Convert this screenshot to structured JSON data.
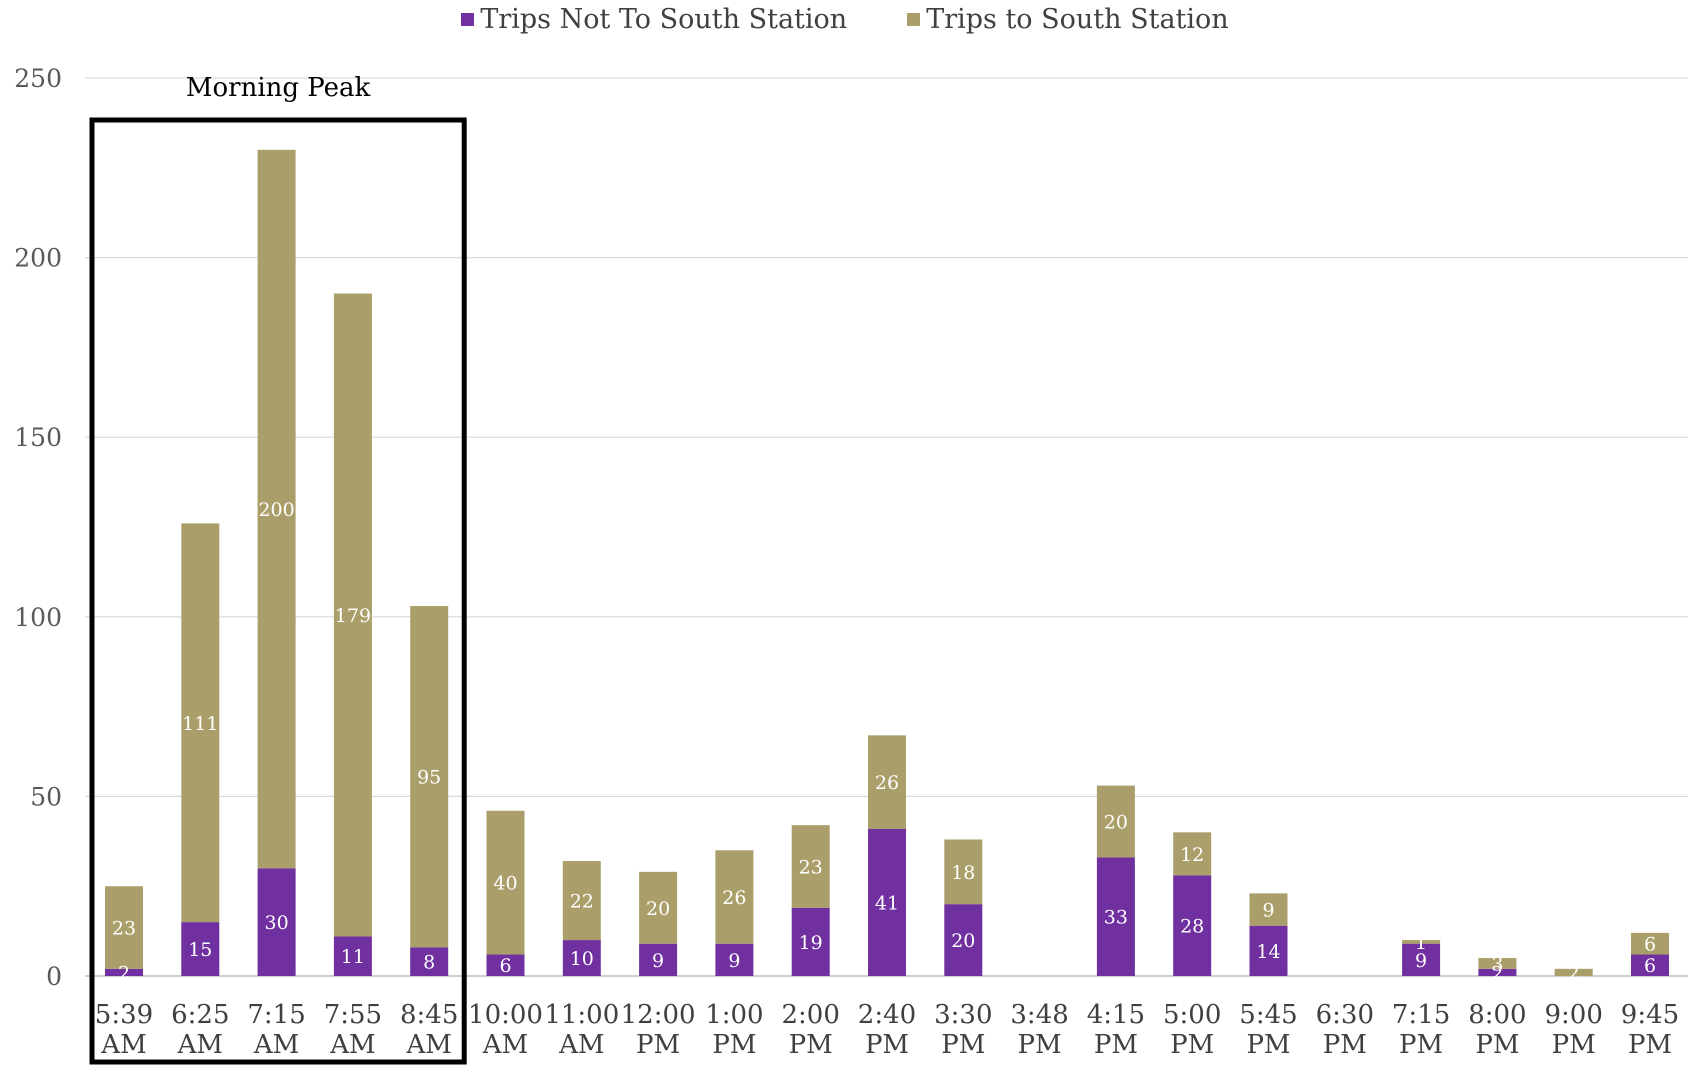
{
  "legend": {
    "series_a": "Trips Not To South Station",
    "series_b": "Trips to South Station"
  },
  "annotation": "Morning Peak",
  "colors": {
    "not_south": "#7030A0",
    "to_south": "#AA9F6A",
    "grid": "#d9d9d9",
    "box": "#000000"
  },
  "chart_data": {
    "type": "bar",
    "stacked": true,
    "categories": [
      [
        "5:39",
        "AM"
      ],
      [
        "6:25",
        "AM"
      ],
      [
        "7:15",
        "AM"
      ],
      [
        "7:55",
        "AM"
      ],
      [
        "8:45",
        "AM"
      ],
      [
        "10:00",
        "AM"
      ],
      [
        "11:00",
        "AM"
      ],
      [
        "12:00",
        "PM"
      ],
      [
        "1:00",
        "PM"
      ],
      [
        "2:00",
        "PM"
      ],
      [
        "2:40",
        "PM"
      ],
      [
        "3:30",
        "PM"
      ],
      [
        "3:48",
        "PM"
      ],
      [
        "4:15",
        "PM"
      ],
      [
        "5:00",
        "PM"
      ],
      [
        "5:45",
        "PM"
      ],
      [
        "6:30",
        "PM"
      ],
      [
        "7:15",
        "PM"
      ],
      [
        "8:00",
        "PM"
      ],
      [
        "9:00",
        "PM"
      ],
      [
        "9:45",
        "PM"
      ]
    ],
    "series": [
      {
        "name": "Trips Not To South Station",
        "values": [
          2,
          15,
          30,
          11,
          8,
          6,
          10,
          9,
          9,
          19,
          41,
          20,
          0,
          33,
          28,
          14,
          0,
          9,
          2,
          0,
          6
        ]
      },
      {
        "name": "Trips to South Station",
        "values": [
          23,
          111,
          200,
          179,
          95,
          40,
          22,
          20,
          26,
          23,
          26,
          18,
          0,
          20,
          12,
          9,
          0,
          1,
          3,
          2,
          6
        ]
      }
    ],
    "ylim": [
      0,
      250
    ],
    "yticks": [
      0,
      50,
      100,
      150,
      200,
      250
    ],
    "highlight_range": [
      0,
      4
    ],
    "legend_position": "top"
  }
}
